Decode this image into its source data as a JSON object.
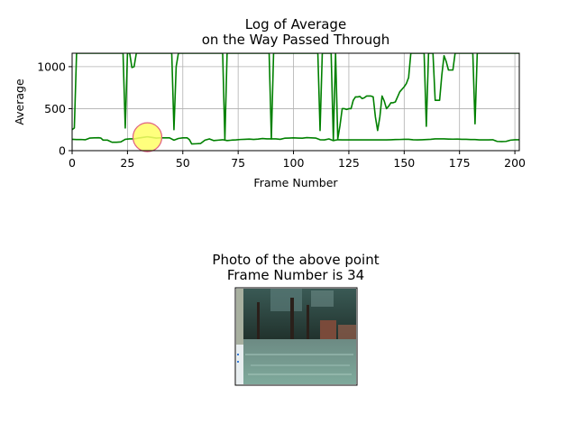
{
  "chart_data": {
    "type": "line",
    "title_line1": "Log of Average",
    "title_line2": "on the Way Passed Through",
    "xlabel": "Frame Number",
    "ylabel": "Average",
    "xlim": [
      0,
      202
    ],
    "ylim": [
      0,
      1160
    ],
    "xticks": [
      0,
      25,
      50,
      75,
      100,
      125,
      150,
      175,
      200
    ],
    "yticks": [
      0,
      500,
      1000
    ],
    "grid": true,
    "series": [
      {
        "color": "#008000",
        "points": [
          [
            0,
            250
          ],
          [
            1,
            270
          ],
          [
            2,
            1160
          ],
          [
            3,
            1160
          ],
          [
            4,
            1160
          ],
          [
            5,
            1160
          ],
          [
            6,
            1160
          ],
          [
            7,
            1160
          ],
          [
            8,
            1160
          ],
          [
            9,
            1160
          ],
          [
            10,
            1160
          ],
          [
            11,
            1160
          ],
          [
            12,
            1160
          ],
          [
            13,
            1160
          ],
          [
            14,
            1160
          ],
          [
            15,
            1160
          ],
          [
            16,
            1160
          ],
          [
            17,
            1160
          ],
          [
            18,
            1160
          ],
          [
            19,
            1160
          ],
          [
            20,
            1160
          ],
          [
            21,
            1160
          ],
          [
            22,
            1160
          ],
          [
            23,
            1160
          ],
          [
            24,
            270
          ],
          [
            25,
            1160
          ],
          [
            26,
            1160
          ],
          [
            27,
            990
          ],
          [
            28,
            1000
          ],
          [
            29,
            1160
          ],
          [
            30,
            1160
          ],
          [
            31,
            1160
          ],
          [
            32,
            1160
          ],
          [
            33,
            1160
          ],
          [
            34,
            1160
          ],
          [
            35,
            1160
          ],
          [
            36,
            1160
          ],
          [
            37,
            1160
          ],
          [
            38,
            1160
          ],
          [
            39,
            1160
          ],
          [
            40,
            1160
          ],
          [
            41,
            1160
          ],
          [
            42,
            1160
          ],
          [
            43,
            1160
          ],
          [
            44,
            1160
          ],
          [
            45,
            1160
          ],
          [
            46,
            250
          ],
          [
            47,
            1000
          ],
          [
            48,
            1160
          ],
          [
            49,
            1160
          ],
          [
            50,
            1160
          ],
          [
            51,
            1160
          ],
          [
            52,
            1160
          ],
          [
            53,
            1160
          ],
          [
            54,
            1160
          ],
          [
            55,
            1160
          ],
          [
            56,
            1160
          ],
          [
            57,
            1160
          ],
          [
            58,
            1160
          ],
          [
            59,
            1160
          ],
          [
            60,
            1160
          ],
          [
            61,
            1160
          ],
          [
            62,
            1160
          ],
          [
            63,
            1160
          ],
          [
            64,
            1160
          ],
          [
            65,
            1160
          ],
          [
            66,
            1160
          ],
          [
            67,
            1160
          ],
          [
            68,
            1160
          ],
          [
            69,
            130
          ],
          [
            70,
            1160
          ],
          [
            71,
            1160
          ],
          [
            72,
            1160
          ],
          [
            73,
            1160
          ],
          [
            74,
            1160
          ],
          [
            75,
            1160
          ],
          [
            76,
            1160
          ],
          [
            77,
            1160
          ],
          [
            78,
            1160
          ],
          [
            79,
            1160
          ],
          [
            80,
            1160
          ],
          [
            81,
            1160
          ],
          [
            82,
            1160
          ],
          [
            83,
            1160
          ],
          [
            84,
            1160
          ],
          [
            85,
            1160
          ],
          [
            86,
            1160
          ],
          [
            87,
            1160
          ],
          [
            88,
            1160
          ],
          [
            89,
            1160
          ],
          [
            90,
            140
          ],
          [
            91,
            1160
          ],
          [
            92,
            1160
          ],
          [
            93,
            1160
          ],
          [
            94,
            1160
          ],
          [
            95,
            1160
          ],
          [
            96,
            1160
          ],
          [
            97,
            1160
          ],
          [
            98,
            1160
          ],
          [
            99,
            1160
          ],
          [
            100,
            1160
          ],
          [
            101,
            1160
          ],
          [
            102,
            1160
          ],
          [
            103,
            1160
          ],
          [
            104,
            1160
          ],
          [
            105,
            1160
          ],
          [
            106,
            1160
          ],
          [
            107,
            1160
          ],
          [
            108,
            1160
          ],
          [
            109,
            1160
          ],
          [
            110,
            1160
          ],
          [
            111,
            1160
          ],
          [
            112,
            240
          ],
          [
            113,
            1160
          ],
          [
            114,
            1160
          ],
          [
            115,
            1160
          ],
          [
            116,
            1160
          ],
          [
            117,
            1160
          ],
          [
            118,
            130
          ],
          [
            119,
            1160
          ],
          [
            120,
            140
          ],
          [
            121,
            300
          ],
          [
            122,
            500
          ],
          [
            123,
            500
          ],
          [
            124,
            490
          ],
          [
            125,
            500
          ],
          [
            126,
            500
          ],
          [
            127,
            600
          ],
          [
            128,
            640
          ],
          [
            129,
            640
          ],
          [
            130,
            645
          ],
          [
            131,
            620
          ],
          [
            132,
            630
          ],
          [
            133,
            650
          ],
          [
            134,
            650
          ],
          [
            135,
            650
          ],
          [
            136,
            640
          ],
          [
            137,
            400
          ],
          [
            138,
            240
          ],
          [
            139,
            400
          ],
          [
            140,
            650
          ],
          [
            141,
            590
          ],
          [
            142,
            500
          ],
          [
            143,
            530
          ],
          [
            144,
            570
          ],
          [
            145,
            570
          ],
          [
            146,
            580
          ],
          [
            147,
            640
          ],
          [
            148,
            700
          ],
          [
            149,
            730
          ],
          [
            150,
            760
          ],
          [
            151,
            800
          ],
          [
            152,
            870
          ],
          [
            153,
            1160
          ],
          [
            154,
            1160
          ],
          [
            155,
            1160
          ],
          [
            156,
            1160
          ],
          [
            157,
            1160
          ],
          [
            158,
            1160
          ],
          [
            159,
            1160
          ],
          [
            160,
            290
          ],
          [
            161,
            1160
          ],
          [
            162,
            1160
          ],
          [
            163,
            1160
          ],
          [
            164,
            600
          ],
          [
            165,
            600
          ],
          [
            166,
            600
          ],
          [
            167,
            900
          ],
          [
            168,
            1130
          ],
          [
            169,
            1060
          ],
          [
            170,
            960
          ],
          [
            171,
            960
          ],
          [
            172,
            960
          ],
          [
            173,
            1160
          ],
          [
            174,
            1160
          ],
          [
            175,
            1160
          ],
          [
            176,
            1160
          ],
          [
            177,
            1160
          ],
          [
            178,
            1160
          ],
          [
            179,
            1160
          ],
          [
            180,
            1160
          ],
          [
            181,
            1160
          ],
          [
            182,
            320
          ],
          [
            183,
            1160
          ],
          [
            184,
            1160
          ],
          [
            185,
            1160
          ],
          [
            186,
            1160
          ],
          [
            187,
            1160
          ],
          [
            188,
            1160
          ],
          [
            189,
            1160
          ],
          [
            190,
            1160
          ],
          [
            191,
            1160
          ],
          [
            192,
            1160
          ],
          [
            193,
            1160
          ],
          [
            194,
            1160
          ],
          [
            195,
            1160
          ],
          [
            196,
            1160
          ],
          [
            197,
            1160
          ],
          [
            198,
            1160
          ],
          [
            199,
            1160
          ],
          [
            200,
            1160
          ],
          [
            201,
            1160
          ],
          [
            202,
            1160
          ]
        ]
      },
      {
        "color": "#008000",
        "points": [
          [
            0,
            135
          ],
          [
            2,
            132
          ],
          [
            4,
            133
          ],
          [
            6,
            130
          ],
          [
            7,
            140
          ],
          [
            8,
            150
          ],
          [
            10,
            152
          ],
          [
            12,
            154
          ],
          [
            13,
            150
          ],
          [
            14,
            125
          ],
          [
            16,
            125
          ],
          [
            18,
            100
          ],
          [
            20,
            100
          ],
          [
            22,
            104
          ],
          [
            24,
            135
          ],
          [
            26,
            140
          ],
          [
            28,
            140
          ],
          [
            30,
            150
          ],
          [
            32,
            158
          ],
          [
            34,
            165
          ],
          [
            36,
            158
          ],
          [
            38,
            150
          ],
          [
            40,
            153
          ],
          [
            42,
            152
          ],
          [
            44,
            152
          ],
          [
            46,
            125
          ],
          [
            48,
            145
          ],
          [
            50,
            152
          ],
          [
            52,
            152
          ],
          [
            53,
            130
          ],
          [
            54,
            80
          ],
          [
            56,
            82
          ],
          [
            58,
            85
          ],
          [
            60,
            125
          ],
          [
            62,
            140
          ],
          [
            64,
            120
          ],
          [
            66,
            125
          ],
          [
            68,
            130
          ],
          [
            70,
            120
          ],
          [
            72,
            125
          ],
          [
            74,
            128
          ],
          [
            76,
            133
          ],
          [
            78,
            135
          ],
          [
            80,
            138
          ],
          [
            82,
            134
          ],
          [
            84,
            138
          ],
          [
            86,
            144
          ],
          [
            88,
            140
          ],
          [
            90,
            140
          ],
          [
            92,
            140
          ],
          [
            94,
            135
          ],
          [
            96,
            148
          ],
          [
            98,
            150
          ],
          [
            100,
            152
          ],
          [
            102,
            150
          ],
          [
            104,
            148
          ],
          [
            106,
            155
          ],
          [
            108,
            152
          ],
          [
            110,
            150
          ],
          [
            112,
            130
          ],
          [
            114,
            128
          ],
          [
            116,
            140
          ],
          [
            118,
            120
          ],
          [
            120,
            130
          ],
          [
            122,
            128
          ],
          [
            124,
            128
          ],
          [
            126,
            128
          ],
          [
            128,
            128
          ],
          [
            130,
            128
          ],
          [
            132,
            128
          ],
          [
            134,
            128
          ],
          [
            136,
            128
          ],
          [
            138,
            128
          ],
          [
            140,
            128
          ],
          [
            142,
            128
          ],
          [
            144,
            130
          ],
          [
            146,
            132
          ],
          [
            148,
            133
          ],
          [
            150,
            135
          ],
          [
            152,
            135
          ],
          [
            154,
            130
          ],
          [
            156,
            128
          ],
          [
            158,
            130
          ],
          [
            160,
            132
          ],
          [
            162,
            135
          ],
          [
            164,
            140
          ],
          [
            166,
            140
          ],
          [
            168,
            140
          ],
          [
            170,
            138
          ],
          [
            172,
            137
          ],
          [
            174,
            138
          ],
          [
            176,
            135
          ],
          [
            178,
            135
          ],
          [
            180,
            132
          ],
          [
            182,
            132
          ],
          [
            184,
            128
          ],
          [
            186,
            128
          ],
          [
            188,
            128
          ],
          [
            190,
            130
          ],
          [
            192,
            110
          ],
          [
            194,
            108
          ],
          [
            196,
            110
          ],
          [
            198,
            125
          ],
          [
            200,
            130
          ],
          [
            202,
            130
          ]
        ]
      }
    ],
    "highlight": {
      "x": 34,
      "y": 160,
      "fill": "#ffff66",
      "stroke": "#e06080"
    }
  },
  "photo_panel": {
    "title_line1": "Photo of the above point",
    "title_line2": "Frame Number is 34"
  },
  "colors": {
    "line": "#008000",
    "highlight_fill": "#ffff66",
    "highlight_edge": "#e06080"
  }
}
